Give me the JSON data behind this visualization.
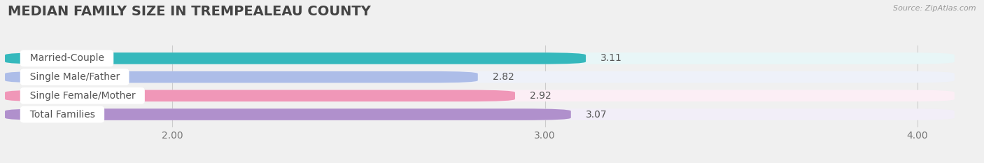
{
  "title": "MEDIAN FAMILY SIZE IN TREMPEALEAU COUNTY",
  "source": "Source: ZipAtlas.com",
  "categories": [
    "Married-Couple",
    "Single Male/Father",
    "Single Female/Mother",
    "Total Families"
  ],
  "values": [
    3.11,
    2.82,
    2.92,
    3.07
  ],
  "bar_colors": [
    "#35b8bc",
    "#adbde8",
    "#f097b8",
    "#b090cc"
  ],
  "bar_bg_colors": [
    "#e8f6f7",
    "#eef1f9",
    "#fceef5",
    "#f2eef8"
  ],
  "xlim": [
    1.55,
    4.1
  ],
  "xticks": [
    2.0,
    3.0,
    4.0
  ],
  "xtick_labels": [
    "2.00",
    "3.00",
    "4.00"
  ],
  "title_fontsize": 14,
  "label_fontsize": 10,
  "value_fontsize": 10,
  "background_color": "#f0f0f0"
}
